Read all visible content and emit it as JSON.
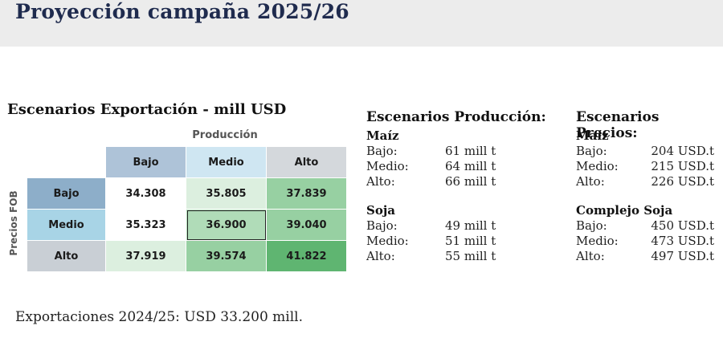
{
  "header": {
    "title": "Proyección campaña 2025/26"
  },
  "matrix": {
    "title": "Escenarios Exportación - mill USD",
    "col_axis_label": "Producción",
    "row_axis_label": "Precios FOB",
    "col_headers": [
      "Bajo",
      "Medio",
      "Alto"
    ],
    "rows": [
      {
        "label": "Bajo",
        "values": [
          "34.308",
          "35.805",
          "37.839"
        ]
      },
      {
        "label": "Medio",
        "values": [
          "35.323",
          "36.900",
          "39.040"
        ]
      },
      {
        "label": "Alto",
        "values": [
          "37.919",
          "39.574",
          "41.822"
        ]
      }
    ]
  },
  "produccion": {
    "heading": "Escenarios Producción:",
    "groups": [
      {
        "title": "Maíz",
        "items": [
          {
            "label": "Bajo:",
            "value": "61 mill t"
          },
          {
            "label": "Medio:",
            "value": "64 mill t"
          },
          {
            "label": "Alto:",
            "value": "66 mill t"
          }
        ]
      },
      {
        "title": "Soja",
        "items": [
          {
            "label": "Bajo:",
            "value": "49 mill t"
          },
          {
            "label": "Medio:",
            "value": "51 mill t"
          },
          {
            "label": "Alto:",
            "value": "55 mill t"
          }
        ]
      }
    ]
  },
  "precios": {
    "heading": "Escenarios Precios:",
    "groups": [
      {
        "title": "Maíz",
        "items": [
          {
            "label": "Bajo:",
            "value": "204 USD.t"
          },
          {
            "label": "Medio:",
            "value": "215  USD.t"
          },
          {
            "label": "Alto:",
            "value": "226 USD.t"
          }
        ]
      },
      {
        "title": "Complejo Soja",
        "items": [
          {
            "label": "Bajo:",
            "value": "450 USD.t"
          },
          {
            "label": "Medio:",
            "value": "473 USD.t"
          },
          {
            "label": "Alto:",
            "value": "497 USD.t"
          }
        ]
      }
    ]
  },
  "footer": {
    "text": "Exportaciones 2024/25: USD 33.200 mill."
  }
}
